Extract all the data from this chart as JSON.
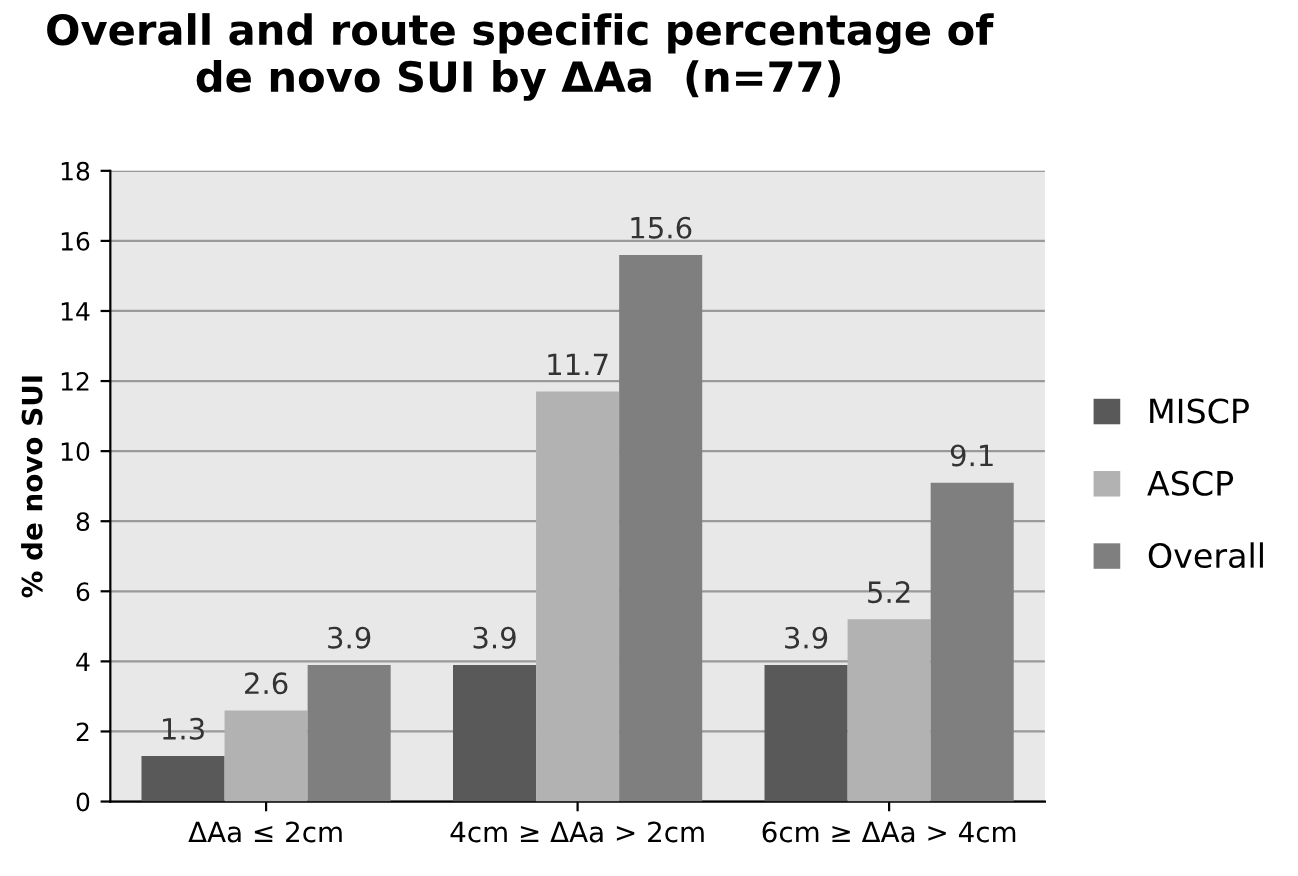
{
  "chart_data": {
    "type": "bar",
    "title": "Overall and route specific percentage of\nde novo SUI by ΔAa  (n=77)",
    "ylabel": "% de novo SUI",
    "categories": [
      "ΔAa ≤ 2cm",
      "4cm ≥ ΔAa > 2cm",
      "6cm ≥ ΔAa > 4cm"
    ],
    "series": [
      {
        "name": "MISCP",
        "color": "#595959",
        "values": [
          1.3,
          3.9,
          3.9
        ]
      },
      {
        "name": "ASCP",
        "color": "#b2b2b2",
        "values": [
          2.6,
          11.7,
          5.2
        ]
      },
      {
        "name": "Overall",
        "color": "#7f7f7f",
        "values": [
          3.9,
          15.6,
          9.1
        ]
      }
    ],
    "ylim": [
      0,
      18
    ],
    "yticks": [
      0,
      2,
      4,
      6,
      8,
      10,
      12,
      14,
      16,
      18
    ],
    "grid": "y",
    "legend": "right",
    "data_labels": true
  }
}
